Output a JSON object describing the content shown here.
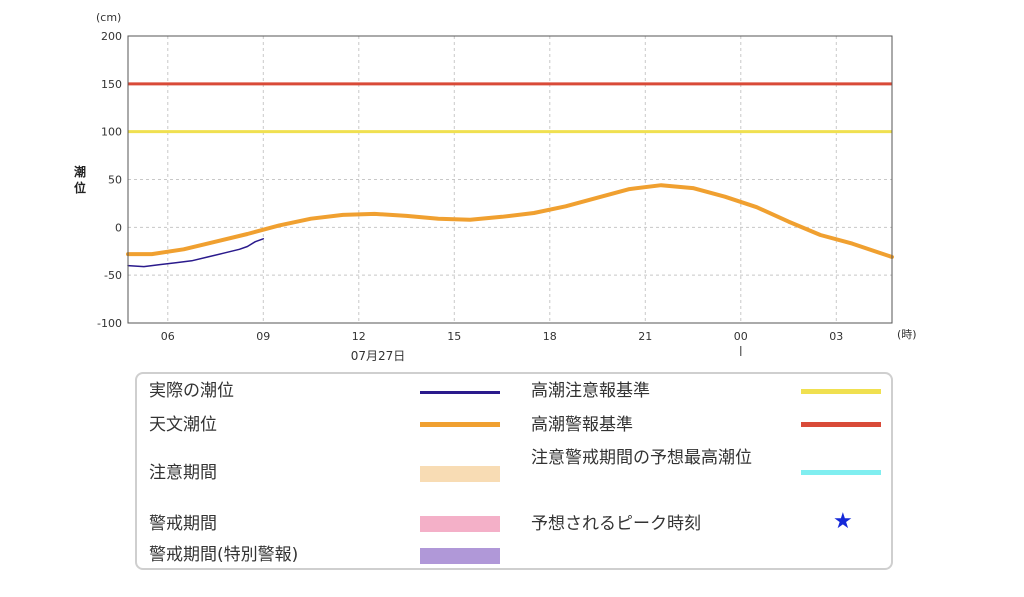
{
  "chart_data": {
    "type": "line",
    "unit_label": "(cm)",
    "ylabel": "潮位",
    "x_unit_label": "(時)",
    "date_label": "07月27日",
    "ylim": [
      -100,
      200
    ],
    "yticks": [
      200,
      150,
      100,
      50,
      0,
      -50,
      -100
    ],
    "xlim_hours": [
      4.75,
      28.75
    ],
    "xticks": [
      {
        "hour": 6,
        "label": "06"
      },
      {
        "hour": 9,
        "label": "09"
      },
      {
        "hour": 12,
        "label": "12"
      },
      {
        "hour": 15,
        "label": "15"
      },
      {
        "hour": 18,
        "label": "18"
      },
      {
        "hour": 21,
        "label": "21"
      },
      {
        "hour": 24,
        "label": "00"
      },
      {
        "hour": 27,
        "label": "03"
      }
    ],
    "grid": true,
    "series": [
      {
        "name": "天文潮位",
        "color": "#f0a030",
        "x": [
          4.75,
          5.5,
          6.5,
          7.5,
          8.5,
          9.5,
          10.5,
          11.5,
          12.5,
          13.5,
          14.5,
          15.5,
          16.5,
          17.5,
          18.5,
          19.5,
          20.5,
          21.5,
          22.5,
          23.5,
          24.5,
          25.5,
          26.5,
          27.5,
          28.75
        ],
        "y": [
          -28,
          -28,
          -23,
          -15,
          -7,
          2,
          9,
          13,
          14,
          12,
          9,
          8,
          11,
          15,
          22,
          31,
          40,
          44,
          41,
          32,
          21,
          6,
          -8,
          -17,
          -31
        ]
      },
      {
        "name": "実際の潮位",
        "color": "#2a1a8c",
        "x": [
          4.75,
          5.25,
          5.75,
          6.25,
          6.75,
          7.25,
          7.75,
          8.25,
          8.5,
          8.75,
          9.0
        ],
        "y": [
          -40,
          -41,
          -39,
          -37,
          -35,
          -31,
          -27,
          -23,
          -20,
          -15,
          -12
        ]
      }
    ],
    "thresholds": [
      {
        "name": "高潮警報基準",
        "value": 150,
        "color": "#d94a38"
      },
      {
        "name": "高潮注意報基準",
        "value": 100,
        "color": "#f0e050"
      }
    ]
  },
  "legend": {
    "actual": "実際の潮位",
    "astro": "天文潮位",
    "caution_period": "注意期間",
    "warning_period": "警戒期間",
    "special_period": "警戒期間(特別警報)",
    "caution_criterion": "高潮注意報基準",
    "warning_criterion": "高潮警報基準",
    "forecast_max": "注意警戒期間の予想最高潮位",
    "peak_time": "予想されるピーク時刻",
    "colors": {
      "actual": "#2a1a8c",
      "astro": "#f0a030",
      "caution_period": "#f8dcb4",
      "warning_period": "#f4b0c8",
      "special_period": "#b098d8",
      "caution_criterion": "#f0e050",
      "warning_criterion": "#d94a38",
      "forecast_max": "#80eef0",
      "peak_star": "#1428d8"
    },
    "peak_icon": "star-icon"
  }
}
